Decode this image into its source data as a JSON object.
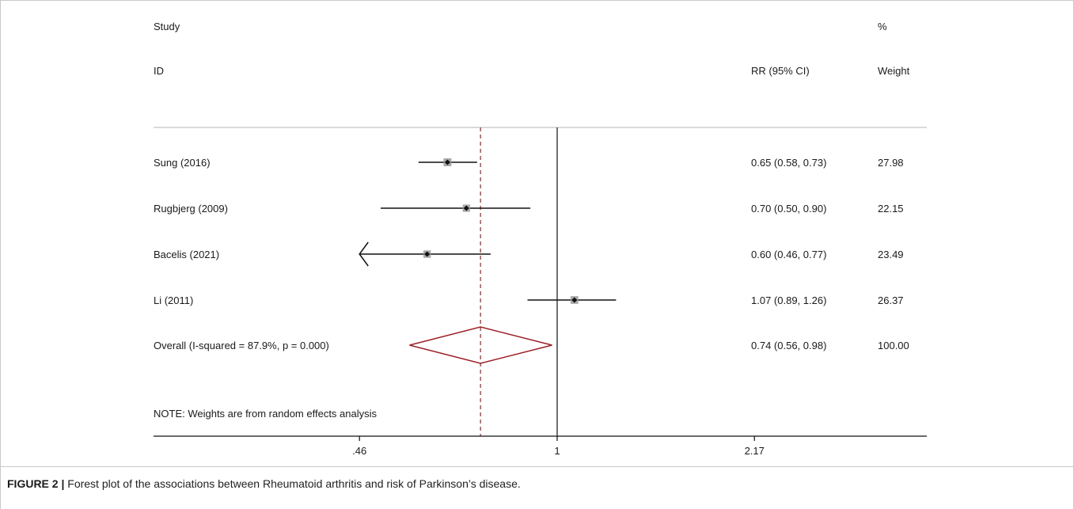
{
  "chart_data": {
    "type": "forest",
    "headers": {
      "study_line1": "Study",
      "study_line2": "ID",
      "rr_header": "RR (95% CI)",
      "weight_line1": "%",
      "weight_line2": "Weight"
    },
    "studies": [
      {
        "label": "Sung (2016)",
        "rr": 0.65,
        "lower": 0.58,
        "upper": 0.73,
        "ci_text": "0.65 (0.58, 0.73)",
        "weight": "27.98"
      },
      {
        "label": "Rugbjerg (2009)",
        "rr": 0.7,
        "lower": 0.5,
        "upper": 0.9,
        "ci_text": "0.70 (0.50, 0.90)",
        "weight": "22.15"
      },
      {
        "label": "Bacelis (2021)",
        "rr": 0.6,
        "lower": 0.46,
        "upper": 0.77,
        "ci_text": "0.60 (0.46, 0.77)",
        "weight": "23.49",
        "lower_truncated": true
      },
      {
        "label": "Li (2011)",
        "rr": 1.07,
        "lower": 0.89,
        "upper": 1.26,
        "ci_text": "1.07 (0.89, 1.26)",
        "weight": "26.37"
      }
    ],
    "overall": {
      "label": "Overall  (I-squared = 87.9%, p = 0.000)",
      "rr": 0.74,
      "lower": 0.56,
      "upper": 0.98,
      "ci_text": "0.74 (0.56, 0.98)",
      "weight": "100.00"
    },
    "note": "NOTE: Weights are from random effects analysis",
    "x_scale": "log",
    "x_range": [
      0.46,
      2.17
    ],
    "x_ticks": [
      {
        "value": 0.46,
        "label": ".46"
      },
      {
        "value": 1,
        "label": "1"
      },
      {
        "value": 2.17,
        "label": "2.17"
      }
    ],
    "null_line": 1,
    "colors": {
      "overall": "#9b2226",
      "line": "#111111",
      "box": "#9a9a9a"
    }
  },
  "caption": {
    "label": "FIGURE 2 |",
    "text": " Forest plot of the associations between Rheumatoid arthritis and risk of Parkinson’s disease."
  }
}
